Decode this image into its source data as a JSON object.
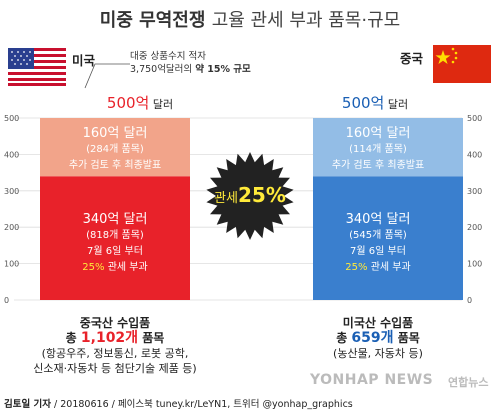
{
  "title": {
    "bold": "미중 무역전쟁",
    "light": "고율 관세 부과 품목·규모"
  },
  "left": {
    "country": "미국",
    "note_line1": "대중 상품수지 적자",
    "note_line2_plain": "3,750억달러의 ",
    "note_line2_bold": "약 15% 규모",
    "total_num": "500억",
    "total_unit": " 달러",
    "top_seg": {
      "amount": "160억 달러",
      "items": "(284개 품목)",
      "status": "추가 검토 후 최종발표"
    },
    "bottom_seg": {
      "amount": "340억 달러",
      "items": "(818개 품목)",
      "date": "7월 6일 부터",
      "rate": "25%",
      "rate_suffix": " 관세 부과"
    },
    "caption_title": "중국산 수입품",
    "caption_prefix": "총 ",
    "caption_count": "1,102개",
    "caption_suffix": " 품목",
    "caption_detail1": "(항공우주, 정보통신, 로봇 공학,",
    "caption_detail2": "신소재·자동차 등 첨단기술 제품 등)"
  },
  "right": {
    "country": "중국",
    "total_num": "500억",
    "total_unit": " 달러",
    "top_seg": {
      "amount": "160억 달러",
      "items": "(114개 품목)",
      "status": "추가 검토 후 최종발표"
    },
    "bottom_seg": {
      "amount": "340억 달러",
      "items": "(545개 품목)",
      "date": "7월 6일 부터",
      "rate": "25%",
      "rate_suffix": " 관세 부과"
    },
    "caption_title": "미국산 수입품",
    "caption_prefix": "총 ",
    "caption_count": "659개",
    "caption_suffix": " 품목",
    "caption_detail1": "(농산물, 자동차 등)"
  },
  "badge": {
    "label": "관세",
    "value": "25%"
  },
  "credit": {
    "author": "김토일 기자",
    "rest": " / 20180616 / 페이스북 tuney.kr/LeYN1, 트위터 @yonhap_graphics"
  },
  "watermark": {
    "text": "YONHAP NEWS",
    "text2": "연합뉴스"
  },
  "colors": {
    "us_top": "#f2a48a",
    "us_bottom": "#e8222a",
    "cn_top": "#93bde6",
    "cn_bottom": "#3a7fce",
    "badge": "#222222",
    "accent_red": "#e8222a",
    "accent_blue": "#1a5fb4",
    "highlight": "#ffea3a"
  },
  "chart_data": {
    "type": "bar",
    "stacked": true,
    "categories": [
      "미국",
      "중국"
    ],
    "series": [
      {
        "name": "340억 달러",
        "values": [
          340,
          340
        ]
      },
      {
        "name": "160억 달러",
        "values": [
          160,
          160
        ]
      }
    ],
    "totals": [
      500,
      500
    ],
    "ylim": [
      0,
      500
    ],
    "yticks": [
      "0",
      "100",
      "200",
      "300",
      "400",
      "500"
    ],
    "grid": true
  }
}
